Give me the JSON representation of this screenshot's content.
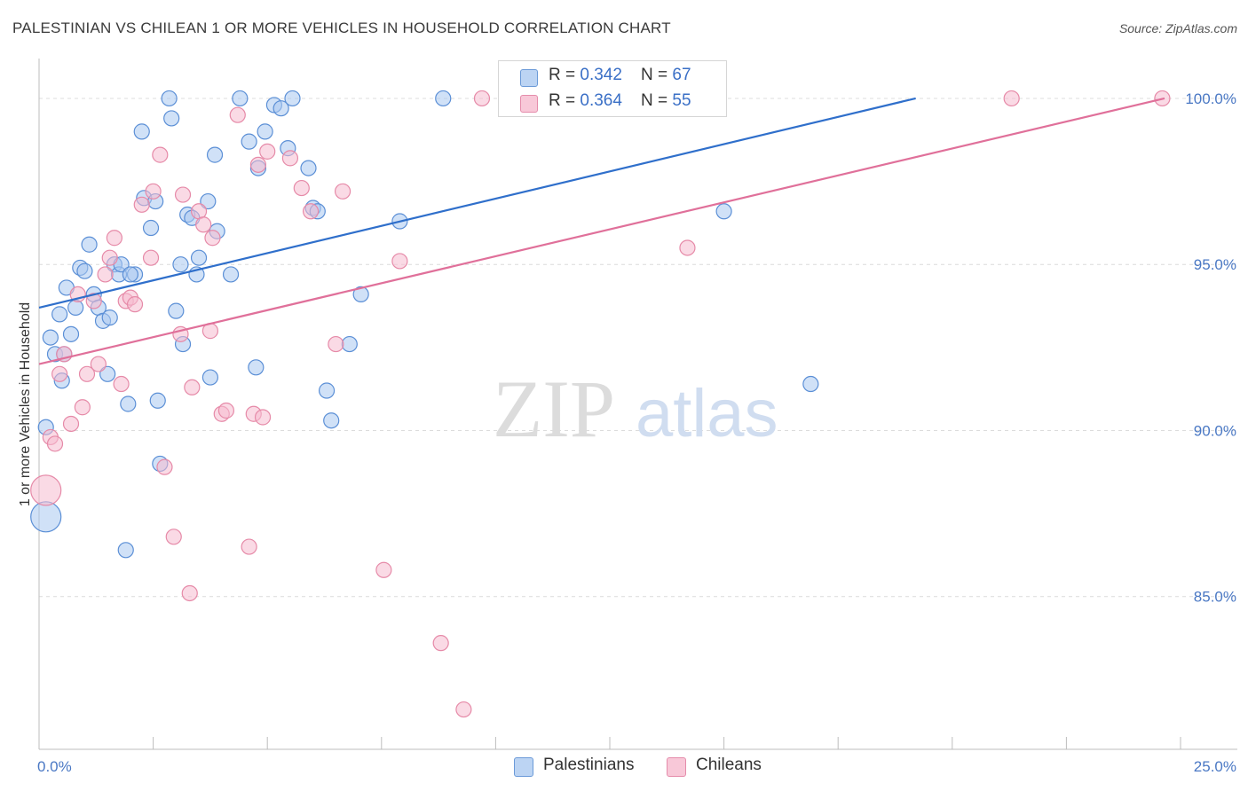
{
  "header": {
    "title": "PALESTINIAN VS CHILEAN 1 OR MORE VEHICLES IN HOUSEHOLD CORRELATION CHART",
    "source": "Source: ZipAtlas.com"
  },
  "watermark": {
    "zip": "ZIP",
    "atlas": "atlas"
  },
  "legend": {
    "series": [
      {
        "r_label": "R = ",
        "r_value": "0.342",
        "n_label": "N = ",
        "n_value": "67"
      },
      {
        "r_label": "R = ",
        "r_value": "0.364",
        "n_label": "N = ",
        "n_value": "55"
      }
    ],
    "bottom": [
      "Palestinians",
      "Chileans"
    ]
  },
  "colors": {
    "palestinians_fill": "#a9c8f0",
    "palestinians_stroke": "#5b8fd6",
    "palestinians_line": "#2f6fcb",
    "chileans_fill": "#f6bcd0",
    "chileans_stroke": "#e68aa8",
    "chileans_line": "#e0709a",
    "grid": "#dcdcdc",
    "tick_text": "#4a78c4"
  },
  "chart_data": {
    "type": "scatter",
    "title": "PALESTINIAN VS CHILEAN 1 OR MORE VEHICLES IN HOUSEHOLD CORRELATION CHART",
    "xlabel": "",
    "ylabel": "1 or more Vehicles in Household",
    "xlim": [
      0,
      25
    ],
    "ylim": [
      80.4,
      101.2
    ],
    "x_ticks": [
      "0.0%",
      "25.0%"
    ],
    "y_ticks": [
      {
        "value": 100,
        "label": "100.0%"
      },
      {
        "value": 95,
        "label": "95.0%"
      },
      {
        "value": 90,
        "label": "90.0%"
      },
      {
        "value": 85,
        "label": "85.0%"
      }
    ],
    "grid": true,
    "legend_position": "top-center",
    "series": [
      {
        "name": "Palestinians",
        "trend": {
          "x": [
            0,
            19.2
          ],
          "y": [
            93.7,
            100.0
          ]
        },
        "points": [
          {
            "x": 0.15,
            "y": 87.4,
            "s": 3
          },
          {
            "x": 0.15,
            "y": 90.1,
            "s": 1
          },
          {
            "x": 0.25,
            "y": 92.8,
            "s": 1
          },
          {
            "x": 0.35,
            "y": 92.3,
            "s": 1
          },
          {
            "x": 0.45,
            "y": 93.5,
            "s": 1
          },
          {
            "x": 0.5,
            "y": 91.5,
            "s": 1
          },
          {
            "x": 0.6,
            "y": 94.3,
            "s": 1
          },
          {
            "x": 0.7,
            "y": 92.9,
            "s": 1
          },
          {
            "x": 0.8,
            "y": 93.7,
            "s": 1
          },
          {
            "x": 0.9,
            "y": 94.9,
            "s": 1
          },
          {
            "x": 1.0,
            "y": 94.8,
            "s": 1
          },
          {
            "x": 1.1,
            "y": 95.6,
            "s": 1
          },
          {
            "x": 1.2,
            "y": 94.1,
            "s": 1
          },
          {
            "x": 1.3,
            "y": 93.7,
            "s": 1
          },
          {
            "x": 1.4,
            "y": 93.3,
            "s": 1
          },
          {
            "x": 1.5,
            "y": 91.7,
            "s": 1
          },
          {
            "x": 1.55,
            "y": 93.4,
            "s": 1
          },
          {
            "x": 1.65,
            "y": 95.0,
            "s": 1
          },
          {
            "x": 1.75,
            "y": 94.7,
            "s": 1
          },
          {
            "x": 1.8,
            "y": 95.0,
            "s": 1
          },
          {
            "x": 1.9,
            "y": 86.4,
            "s": 1
          },
          {
            "x": 1.95,
            "y": 90.8,
            "s": 1
          },
          {
            "x": 2.1,
            "y": 94.7,
            "s": 1
          },
          {
            "x": 2.25,
            "y": 99.0,
            "s": 1
          },
          {
            "x": 2.3,
            "y": 97.0,
            "s": 1
          },
          {
            "x": 2.45,
            "y": 96.1,
            "s": 1
          },
          {
            "x": 2.55,
            "y": 96.9,
            "s": 1
          },
          {
            "x": 2.6,
            "y": 90.9,
            "s": 1
          },
          {
            "x": 2.65,
            "y": 89.0,
            "s": 1
          },
          {
            "x": 2.85,
            "y": 100.0,
            "s": 1
          },
          {
            "x": 2.9,
            "y": 99.4,
            "s": 1
          },
          {
            "x": 3.0,
            "y": 93.6,
            "s": 1
          },
          {
            "x": 3.1,
            "y": 95.0,
            "s": 1
          },
          {
            "x": 3.15,
            "y": 92.6,
            "s": 1
          },
          {
            "x": 3.25,
            "y": 96.5,
            "s": 1
          },
          {
            "x": 3.35,
            "y": 96.4,
            "s": 1
          },
          {
            "x": 3.45,
            "y": 94.7,
            "s": 1
          },
          {
            "x": 3.5,
            "y": 95.2,
            "s": 1
          },
          {
            "x": 3.7,
            "y": 96.9,
            "s": 1
          },
          {
            "x": 3.75,
            "y": 91.6,
            "s": 1
          },
          {
            "x": 3.85,
            "y": 98.3,
            "s": 1
          },
          {
            "x": 3.9,
            "y": 96.0,
            "s": 1
          },
          {
            "x": 4.2,
            "y": 94.7,
            "s": 1
          },
          {
            "x": 4.4,
            "y": 100.0,
            "s": 1
          },
          {
            "x": 4.6,
            "y": 98.7,
            "s": 1
          },
          {
            "x": 4.75,
            "y": 91.9,
            "s": 1
          },
          {
            "x": 4.8,
            "y": 97.9,
            "s": 1
          },
          {
            "x": 4.95,
            "y": 99.0,
            "s": 1
          },
          {
            "x": 5.15,
            "y": 99.8,
            "s": 1
          },
          {
            "x": 5.3,
            "y": 99.7,
            "s": 1
          },
          {
            "x": 5.45,
            "y": 98.5,
            "s": 1
          },
          {
            "x": 5.55,
            "y": 100.0,
            "s": 1
          },
          {
            "x": 5.9,
            "y": 97.9,
            "s": 1
          },
          {
            "x": 6.0,
            "y": 96.7,
            "s": 1
          },
          {
            "x": 6.1,
            "y": 96.6,
            "s": 1
          },
          {
            "x": 6.3,
            "y": 91.2,
            "s": 1
          },
          {
            "x": 6.4,
            "y": 90.3,
            "s": 1
          },
          {
            "x": 6.8,
            "y": 92.6,
            "s": 1
          },
          {
            "x": 7.05,
            "y": 94.1,
            "s": 1
          },
          {
            "x": 7.9,
            "y": 96.3,
            "s": 1
          },
          {
            "x": 8.85,
            "y": 100.0,
            "s": 1
          },
          {
            "x": 11.9,
            "y": 100.0,
            "s": 1
          },
          {
            "x": 12.5,
            "y": 100.0,
            "s": 1
          },
          {
            "x": 15.0,
            "y": 96.6,
            "s": 1
          },
          {
            "x": 16.9,
            "y": 91.4,
            "s": 1
          },
          {
            "x": 2.0,
            "y": 94.7,
            "s": 1
          },
          {
            "x": 0.55,
            "y": 92.3,
            "s": 1
          }
        ]
      },
      {
        "name": "Chileans",
        "trend": {
          "x": [
            0,
            24.65
          ],
          "y": [
            92.0,
            100.0
          ]
        },
        "points": [
          {
            "x": 0.15,
            "y": 88.2,
            "s": 3
          },
          {
            "x": 0.25,
            "y": 89.8,
            "s": 1
          },
          {
            "x": 0.35,
            "y": 89.6,
            "s": 1
          },
          {
            "x": 0.45,
            "y": 91.7,
            "s": 1
          },
          {
            "x": 0.55,
            "y": 92.3,
            "s": 1
          },
          {
            "x": 0.7,
            "y": 90.2,
            "s": 1
          },
          {
            "x": 0.85,
            "y": 94.1,
            "s": 1
          },
          {
            "x": 0.95,
            "y": 90.7,
            "s": 1
          },
          {
            "x": 1.05,
            "y": 91.7,
            "s": 1
          },
          {
            "x": 1.2,
            "y": 93.9,
            "s": 1
          },
          {
            "x": 1.3,
            "y": 92.0,
            "s": 1
          },
          {
            "x": 1.45,
            "y": 94.7,
            "s": 1
          },
          {
            "x": 1.55,
            "y": 95.2,
            "s": 1
          },
          {
            "x": 1.65,
            "y": 95.8,
            "s": 1
          },
          {
            "x": 1.8,
            "y": 91.4,
            "s": 1
          },
          {
            "x": 1.9,
            "y": 93.9,
            "s": 1
          },
          {
            "x": 2.0,
            "y": 94.0,
            "s": 1
          },
          {
            "x": 2.1,
            "y": 93.8,
            "s": 1
          },
          {
            "x": 2.25,
            "y": 96.8,
            "s": 1
          },
          {
            "x": 2.45,
            "y": 95.2,
            "s": 1
          },
          {
            "x": 2.5,
            "y": 97.2,
            "s": 1
          },
          {
            "x": 2.65,
            "y": 98.3,
            "s": 1
          },
          {
            "x": 2.75,
            "y": 88.9,
            "s": 1
          },
          {
            "x": 2.95,
            "y": 86.8,
            "s": 1
          },
          {
            "x": 3.1,
            "y": 92.9,
            "s": 1
          },
          {
            "x": 3.15,
            "y": 97.1,
            "s": 1
          },
          {
            "x": 3.3,
            "y": 85.1,
            "s": 1
          },
          {
            "x": 3.35,
            "y": 91.3,
            "s": 1
          },
          {
            "x": 3.5,
            "y": 96.6,
            "s": 1
          },
          {
            "x": 3.6,
            "y": 96.2,
            "s": 1
          },
          {
            "x": 3.75,
            "y": 93.0,
            "s": 1
          },
          {
            "x": 3.8,
            "y": 95.8,
            "s": 1
          },
          {
            "x": 4.0,
            "y": 90.5,
            "s": 1
          },
          {
            "x": 4.1,
            "y": 90.6,
            "s": 1
          },
          {
            "x": 4.35,
            "y": 99.5,
            "s": 1
          },
          {
            "x": 4.6,
            "y": 86.5,
            "s": 1
          },
          {
            "x": 4.7,
            "y": 90.5,
            "s": 1
          },
          {
            "x": 4.8,
            "y": 98.0,
            "s": 1
          },
          {
            "x": 4.9,
            "y": 90.4,
            "s": 1
          },
          {
            "x": 5.0,
            "y": 98.4,
            "s": 1
          },
          {
            "x": 5.5,
            "y": 98.2,
            "s": 1
          },
          {
            "x": 5.75,
            "y": 97.3,
            "s": 1
          },
          {
            "x": 5.95,
            "y": 96.6,
            "s": 1
          },
          {
            "x": 6.5,
            "y": 92.6,
            "s": 1
          },
          {
            "x": 6.65,
            "y": 97.2,
            "s": 1
          },
          {
            "x": 7.55,
            "y": 85.8,
            "s": 1
          },
          {
            "x": 7.9,
            "y": 95.1,
            "s": 1
          },
          {
            "x": 8.8,
            "y": 83.6,
            "s": 1
          },
          {
            "x": 9.3,
            "y": 81.6,
            "s": 1
          },
          {
            "x": 9.7,
            "y": 100.0,
            "s": 1
          },
          {
            "x": 12.0,
            "y": 100.0,
            "s": 1
          },
          {
            "x": 14.2,
            "y": 95.5,
            "s": 1
          },
          {
            "x": 21.3,
            "y": 100.0,
            "s": 1
          },
          {
            "x": 24.6,
            "y": 100.0,
            "s": 1
          },
          {
            "x": 14.0,
            "y": 100.0,
            "s": 1
          }
        ]
      }
    ]
  }
}
